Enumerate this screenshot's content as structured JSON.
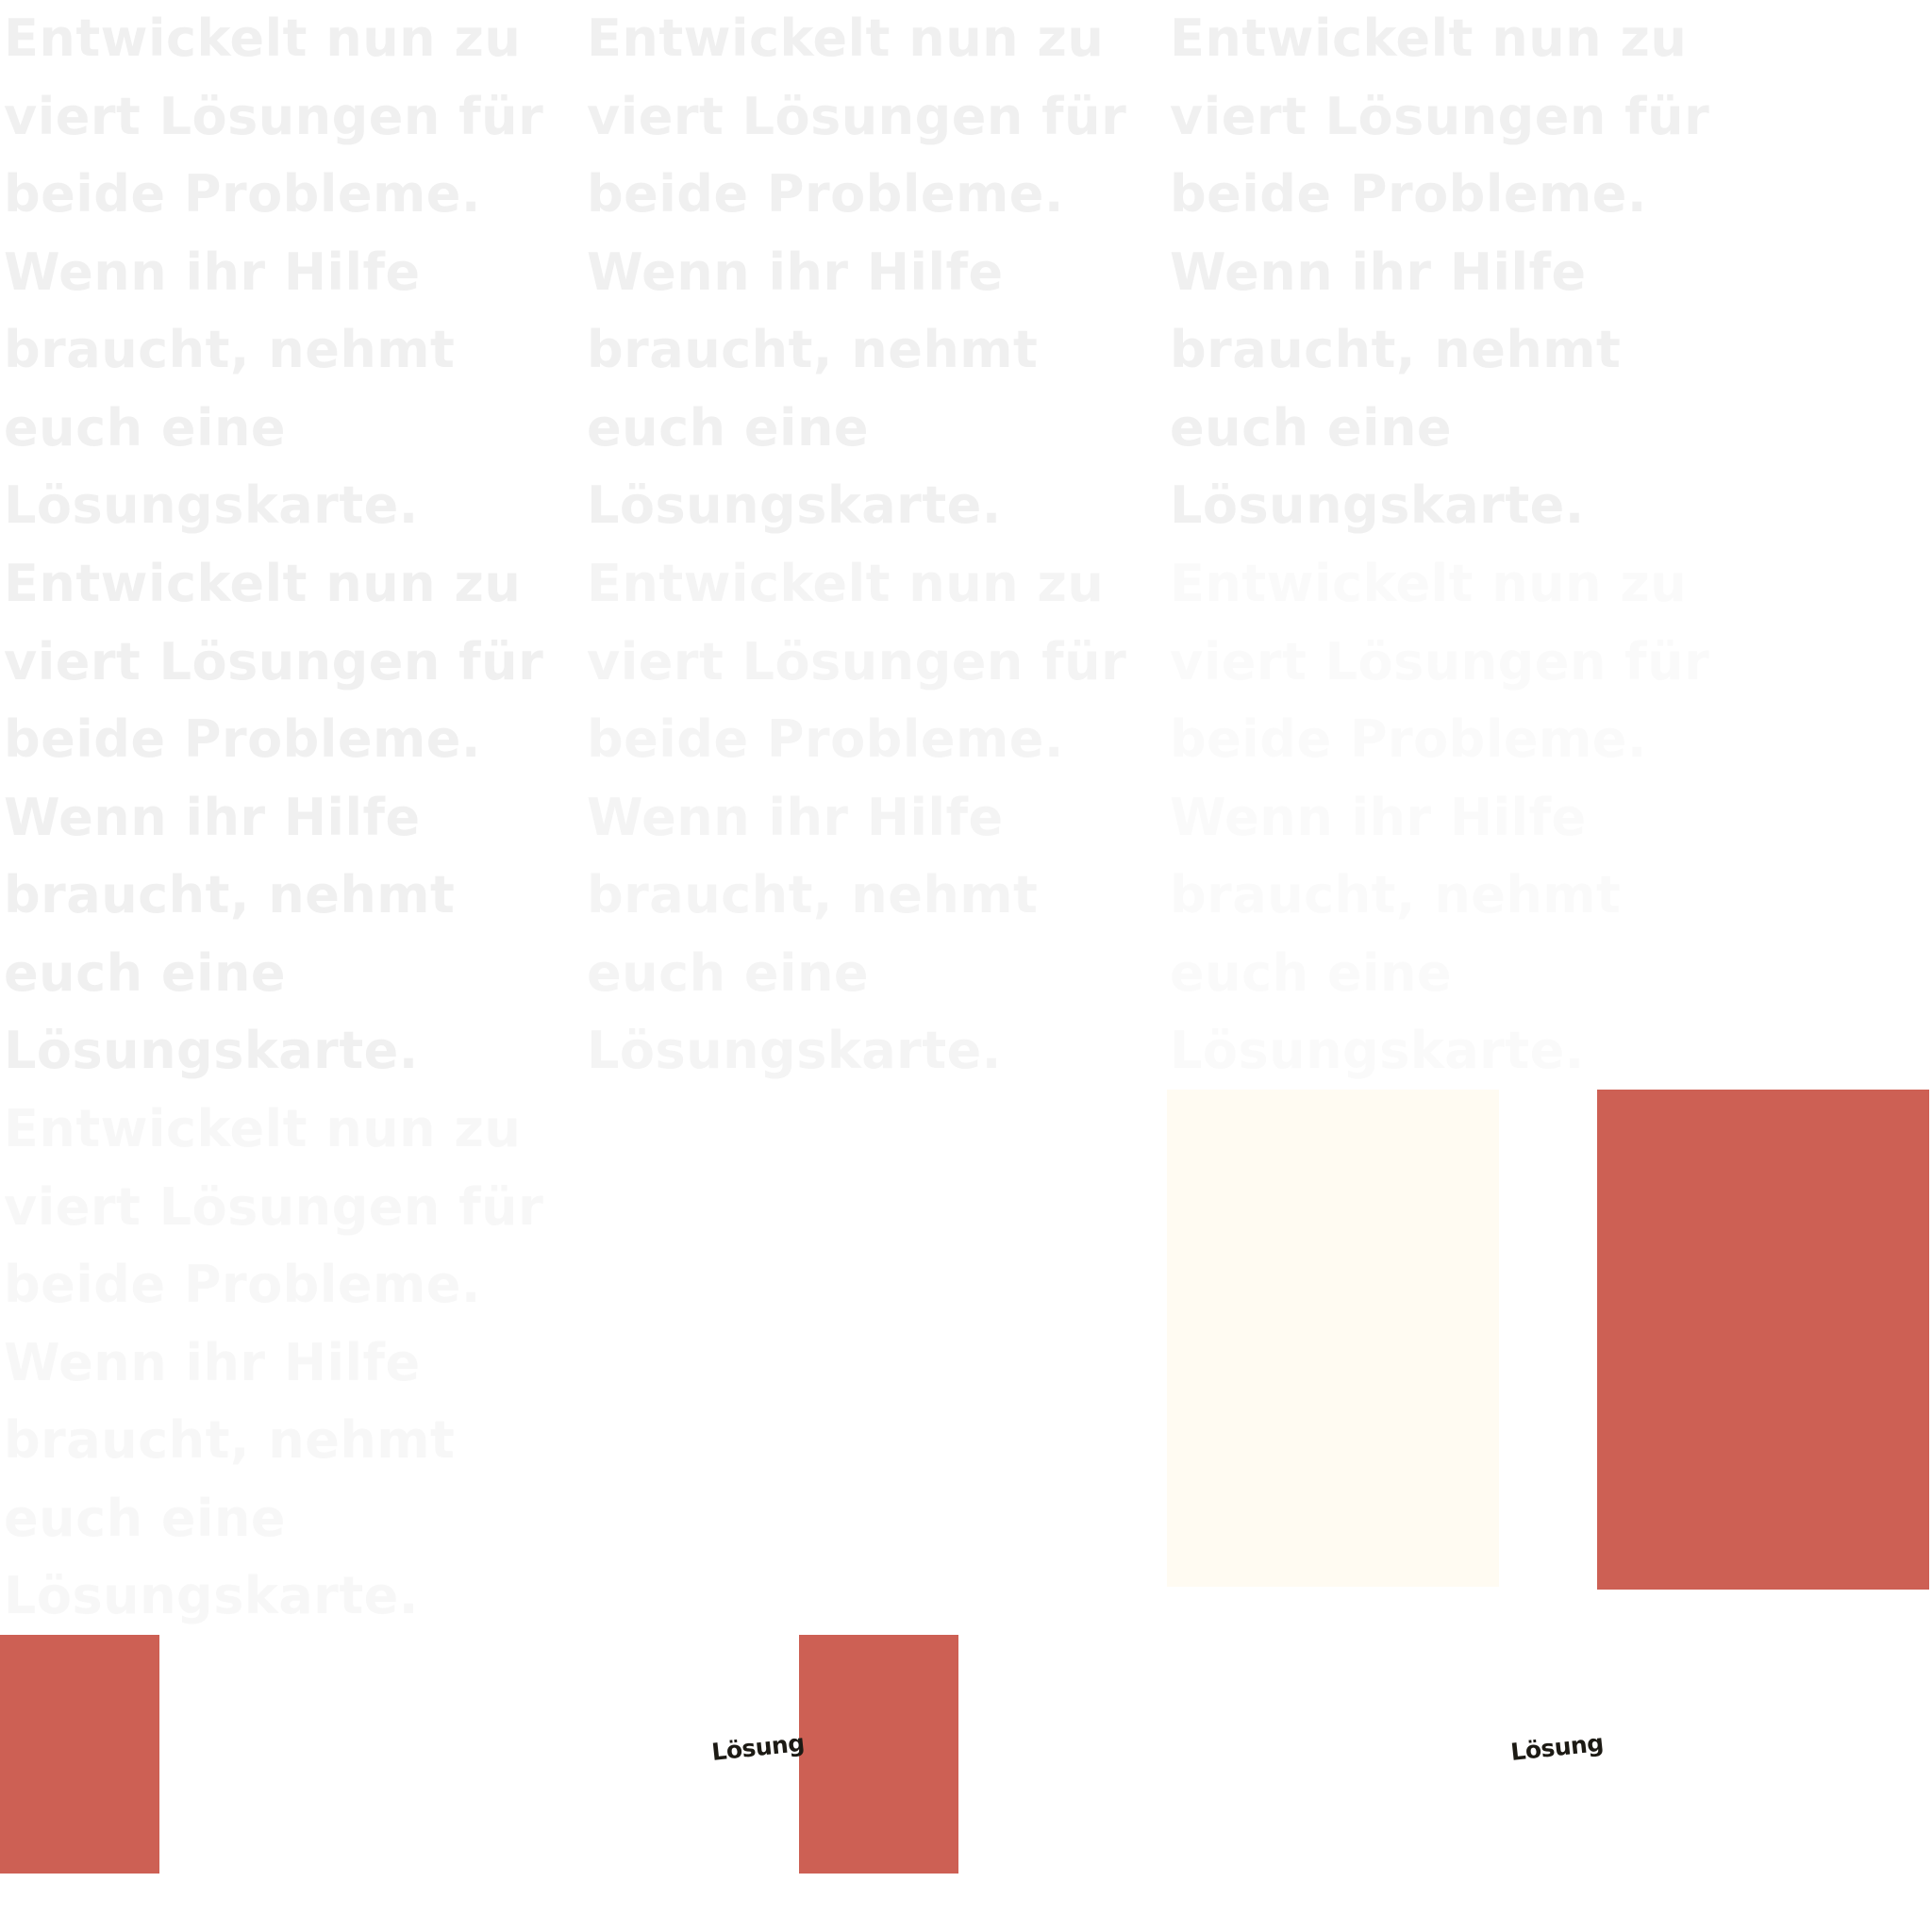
{
  "paragraph_text": "Entwickelt nun zu\nviert Lösungen für\nbeide Probleme.\nWenn ihr Hilfe\nbraucht, nehmt\neuch eine\nLösungskarte.",
  "blocks": [
    {
      "id": "c1r1",
      "color": "#f0f0f0"
    },
    {
      "id": "c2r1",
      "color": "#f0f0f0"
    },
    {
      "id": "c3r1",
      "color": "#f0f0f0"
    },
    {
      "id": "c1r2",
      "color": "#f0f0f0"
    },
    {
      "id": "c2r2",
      "color": "#f4f4f4"
    },
    {
      "id": "c3r2",
      "color": "#fafafa"
    },
    {
      "id": "c1r3",
      "color": "#f7f7f7"
    }
  ],
  "cards": {
    "cream_color": "#fffbf2",
    "red_color": "#cd6054"
  },
  "labels": [
    {
      "id": "label-1",
      "text": "Lösung"
    },
    {
      "id": "label-2",
      "text": "Lösung"
    }
  ]
}
